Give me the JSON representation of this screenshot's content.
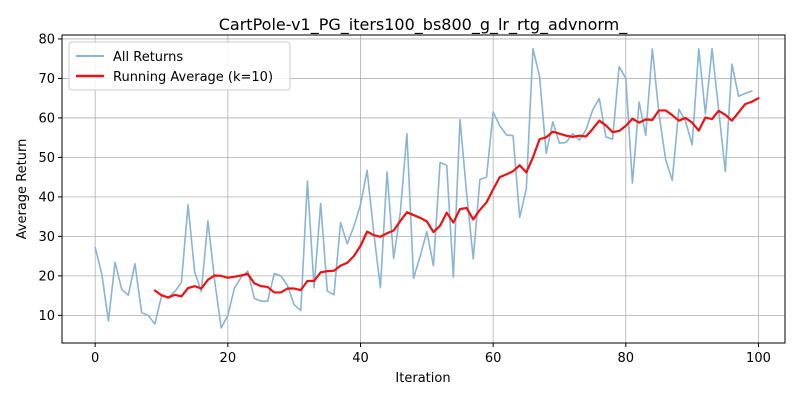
{
  "chart_data": {
    "type": "line",
    "title": "CartPole-v1_PG_iters100_bs800_g_lr_rtg_advnorm_",
    "xlabel": "Iteration",
    "ylabel": "Average Return",
    "xlim": [
      -5,
      104
    ],
    "ylim": [
      3,
      81
    ],
    "xticks": [
      0,
      20,
      40,
      60,
      80,
      100
    ],
    "yticks": [
      10,
      20,
      30,
      40,
      50,
      60,
      70,
      80
    ],
    "grid": true,
    "legend_position": "top-left",
    "series": [
      {
        "name": "All Returns",
        "color": "#89b4d6",
        "x_start": 0,
        "values": [
          27.2,
          20.5,
          8.6,
          23.4,
          16.6,
          15.1,
          23.1,
          10.7,
          10.0,
          7.8,
          14.9,
          14.6,
          16.0,
          18.3,
          38.0,
          21.0,
          16.0,
          33.9,
          19.0,
          6.8,
          10.0,
          16.9,
          19.6,
          21.2,
          14.3,
          13.6,
          13.6,
          20.6,
          20.0,
          17.5,
          12.7,
          11.2,
          44.0,
          17.0,
          38.3,
          16.2,
          15.2,
          33.5,
          28.1,
          32.5,
          38.0,
          46.7,
          31.0,
          17.0,
          46.3,
          24.4,
          36.0,
          56.0,
          19.4,
          25.0,
          31.2,
          22.6,
          48.7,
          48.0,
          19.7,
          59.6,
          41.0,
          24.3,
          44.4,
          45.0,
          61.5,
          58.0,
          55.7,
          55.5,
          34.8,
          42.0,
          77.5,
          70.5,
          51.0,
          59.0,
          53.6,
          53.8,
          56.0,
          54.4,
          57.0,
          62.0,
          64.9,
          55.2,
          54.6,
          73.0,
          70.0,
          43.5,
          64.0,
          55.6,
          77.5,
          61.0,
          49.5,
          44.2,
          62.2,
          59.2,
          53.2,
          77.5,
          61.0,
          77.5,
          62.0,
          46.4,
          73.6,
          65.5,
          66.2,
          66.8
        ]
      },
      {
        "name": "Running Average (k=10)",
        "color": "#ee1111",
        "x_start": 9,
        "values": [
          16.3,
          15.1,
          14.5,
          15.2,
          14.8,
          16.9,
          17.4,
          16.8,
          19.0,
          20.1,
          20.0,
          19.5,
          19.8,
          20.1,
          20.5,
          18.1,
          17.4,
          17.2,
          15.8,
          15.8,
          16.8,
          16.8,
          16.4,
          18.7,
          18.7,
          20.9,
          21.2,
          21.3,
          22.6,
          23.3,
          25.0,
          27.6,
          31.2,
          30.3,
          29.9,
          30.8,
          31.5,
          33.9,
          36.1,
          35.4,
          34.7,
          33.8,
          31.1,
          32.7,
          36.0,
          33.5,
          36.9,
          37.2,
          34.3,
          36.7,
          38.6,
          41.9,
          45.0,
          45.7,
          46.5,
          48.0,
          46.2,
          50.0,
          54.6,
          55.1,
          56.5,
          56.0,
          55.5,
          55.2,
          55.5,
          55.3,
          57.2,
          59.3,
          58.1,
          56.4,
          56.7,
          58.0,
          59.8,
          58.8,
          59.6,
          59.5,
          61.9,
          61.9,
          60.7,
          59.3,
          60.0,
          58.8,
          56.8,
          60.1,
          59.7,
          61.8,
          60.8,
          59.3,
          61.4,
          63.5,
          64.1,
          65.0
        ]
      }
    ]
  }
}
